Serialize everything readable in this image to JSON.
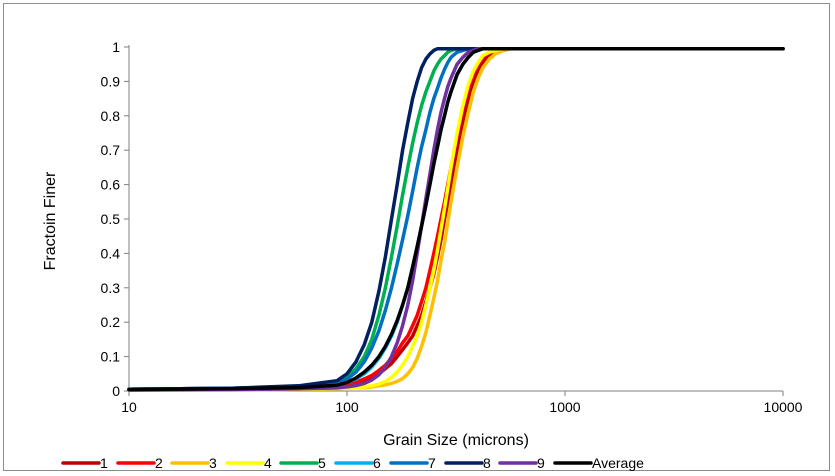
{
  "chart_data": {
    "type": "line",
    "xscale": "log",
    "title": "",
    "xlabel": "Grain Size  (microns)",
    "ylabel": "Fractoin Finer",
    "xlim": [
      10,
      10000
    ],
    "ylim": [
      0,
      1
    ],
    "x_ticks": [
      "10",
      "100",
      "1000",
      "10000"
    ],
    "y_ticks": [
      "0",
      "0.1",
      "0.2",
      "0.3",
      "0.4",
      "0.5",
      "0.6",
      "0.7",
      "0.8",
      "0.9",
      "1"
    ],
    "grid": false,
    "legend_position": "bottom",
    "x": [
      10,
      30,
      60,
      90,
      100,
      110,
      120,
      130,
      140,
      150,
      160,
      170,
      180,
      190,
      200,
      210,
      220,
      230,
      240,
      250,
      260,
      270,
      280,
      290,
      300,
      320,
      340,
      360,
      380,
      400,
      420,
      450,
      480,
      520,
      560,
      600,
      700,
      800,
      1000,
      2000,
      5000,
      10000
    ],
    "series": [
      {
        "name": "1",
        "color": "#c00000",
        "values": [
          0.005,
          0.008,
          0.01,
          0.015,
          0.02,
          0.025,
          0.03,
          0.04,
          0.05,
          0.065,
          0.08,
          0.1,
          0.12,
          0.14,
          0.16,
          0.19,
          0.22,
          0.26,
          0.3,
          0.34,
          0.39,
          0.44,
          0.5,
          0.55,
          0.6,
          0.7,
          0.78,
          0.85,
          0.9,
          0.935,
          0.955,
          0.975,
          0.985,
          0.99,
          0.995,
          0.995,
          0.995,
          0.995,
          0.995,
          0.995,
          0.995,
          0.995
        ]
      },
      {
        "name": "2",
        "color": "#ff0000",
        "values": [
          0.005,
          0.008,
          0.01,
          0.015,
          0.02,
          0.025,
          0.035,
          0.045,
          0.06,
          0.075,
          0.095,
          0.115,
          0.14,
          0.16,
          0.19,
          0.22,
          0.26,
          0.3,
          0.35,
          0.4,
          0.45,
          0.5,
          0.55,
          0.6,
          0.65,
          0.74,
          0.82,
          0.88,
          0.92,
          0.95,
          0.97,
          0.985,
          0.99,
          0.995,
          0.995,
          0.995,
          0.995,
          0.995,
          0.995,
          0.995,
          0.995,
          0.995
        ]
      },
      {
        "name": "3",
        "color": "#ffc000",
        "values": [
          0.003,
          0.004,
          0.005,
          0.007,
          0.008,
          0.01,
          0.01,
          0.012,
          0.015,
          0.018,
          0.022,
          0.028,
          0.036,
          0.05,
          0.068,
          0.095,
          0.13,
          0.17,
          0.22,
          0.27,
          0.32,
          0.38,
          0.43,
          0.49,
          0.55,
          0.65,
          0.74,
          0.81,
          0.87,
          0.91,
          0.94,
          0.965,
          0.98,
          0.99,
          0.995,
          0.995,
          0.995,
          0.995,
          0.995,
          0.995,
          0.995,
          0.995
        ]
      },
      {
        "name": "4",
        "color": "#ffff00",
        "values": [
          0.003,
          0.004,
          0.005,
          0.007,
          0.008,
          0.01,
          0.012,
          0.015,
          0.02,
          0.028,
          0.04,
          0.055,
          0.075,
          0.1,
          0.13,
          0.16,
          0.2,
          0.25,
          0.3,
          0.35,
          0.41,
          0.47,
          0.53,
          0.59,
          0.65,
          0.75,
          0.83,
          0.89,
          0.93,
          0.955,
          0.975,
          0.985,
          0.99,
          0.995,
          0.995,
          0.995,
          0.995,
          0.995,
          0.995,
          0.995,
          0.995,
          0.995
        ]
      },
      {
        "name": "5",
        "color": "#00b050",
        "values": [
          0.005,
          0.008,
          0.012,
          0.025,
          0.04,
          0.065,
          0.1,
          0.15,
          0.22,
          0.3,
          0.39,
          0.48,
          0.57,
          0.65,
          0.72,
          0.78,
          0.83,
          0.87,
          0.9,
          0.93,
          0.95,
          0.965,
          0.975,
          0.985,
          0.99,
          0.995,
          0.995,
          0.995,
          0.995,
          0.995,
          0.995,
          0.995,
          0.995,
          0.995,
          0.995,
          0.995,
          0.995,
          0.995,
          0.995,
          0.995,
          0.995,
          0.995
        ]
      },
      {
        "name": "6",
        "color": "#00b0f0",
        "values": [
          0.005,
          0.008,
          0.01,
          0.018,
          0.025,
          0.035,
          0.05,
          0.07,
          0.095,
          0.125,
          0.16,
          0.2,
          0.25,
          0.3,
          0.36,
          0.42,
          0.48,
          0.54,
          0.6,
          0.66,
          0.71,
          0.76,
          0.8,
          0.84,
          0.87,
          0.92,
          0.95,
          0.97,
          0.985,
          0.99,
          0.995,
          0.995,
          0.995,
          0.995,
          0.995,
          0.995,
          0.995,
          0.995,
          0.995,
          0.995,
          0.995,
          0.995
        ]
      },
      {
        "name": "7",
        "color": "#0070c0",
        "values": [
          0.005,
          0.008,
          0.012,
          0.022,
          0.035,
          0.055,
          0.085,
          0.125,
          0.175,
          0.235,
          0.3,
          0.37,
          0.44,
          0.51,
          0.58,
          0.65,
          0.71,
          0.76,
          0.81,
          0.85,
          0.88,
          0.91,
          0.935,
          0.955,
          0.97,
          0.985,
          0.99,
          0.995,
          0.995,
          0.995,
          0.995,
          0.995,
          0.995,
          0.995,
          0.995,
          0.995,
          0.995,
          0.995,
          0.995,
          0.995,
          0.995,
          0.995
        ]
      },
      {
        "name": "8",
        "color": "#002060",
        "values": [
          0.005,
          0.008,
          0.015,
          0.03,
          0.05,
          0.085,
          0.135,
          0.2,
          0.29,
          0.39,
          0.5,
          0.6,
          0.7,
          0.78,
          0.85,
          0.9,
          0.94,
          0.965,
          0.98,
          0.99,
          0.995,
          0.995,
          0.995,
          0.995,
          0.995,
          0.995,
          0.995,
          0.995,
          0.995,
          0.995,
          0.995,
          0.995,
          0.995,
          0.995,
          0.995,
          0.995,
          0.995,
          0.995,
          0.995,
          0.995,
          0.995,
          0.995
        ]
      },
      {
        "name": "9",
        "color": "#7030a0",
        "values": [
          0.003,
          0.004,
          0.006,
          0.009,
          0.012,
          0.016,
          0.022,
          0.032,
          0.047,
          0.07,
          0.1,
          0.14,
          0.19,
          0.25,
          0.32,
          0.4,
          0.48,
          0.56,
          0.63,
          0.7,
          0.76,
          0.81,
          0.85,
          0.885,
          0.91,
          0.95,
          0.97,
          0.985,
          0.99,
          0.995,
          0.995,
          0.995,
          0.995,
          0.995,
          0.995,
          0.995,
          0.995,
          0.995,
          0.995,
          0.995,
          0.995,
          0.995
        ]
      },
      {
        "name": "Average",
        "color": "#000000",
        "values": [
          0.004,
          0.007,
          0.01,
          0.017,
          0.025,
          0.038,
          0.055,
          0.075,
          0.1,
          0.13,
          0.165,
          0.205,
          0.25,
          0.3,
          0.36,
          0.42,
          0.48,
          0.54,
          0.6,
          0.66,
          0.71,
          0.76,
          0.8,
          0.84,
          0.87,
          0.92,
          0.95,
          0.97,
          0.985,
          0.99,
          0.995,
          0.995,
          0.995,
          0.995,
          0.995,
          0.995,
          0.995,
          0.995,
          0.995,
          0.995,
          0.995,
          0.995
        ]
      }
    ]
  }
}
